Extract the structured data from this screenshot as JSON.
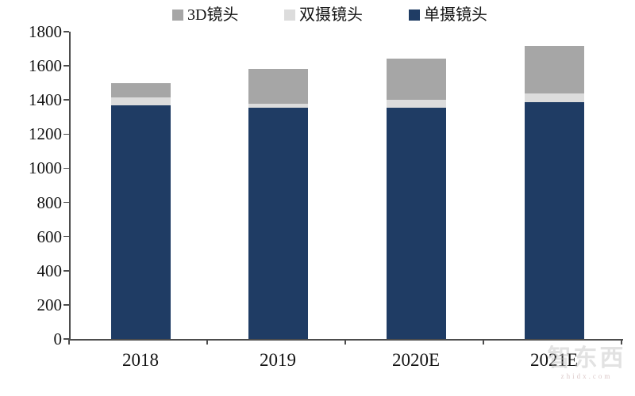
{
  "chart_data": {
    "type": "bar",
    "variant": "stacked-vertical",
    "categories": [
      "2018",
      "2019",
      "2020E",
      "2021E"
    ],
    "series": [
      {
        "name": "单摄镜头",
        "color": "#1f3c64",
        "values": [
          1370,
          1355,
          1355,
          1385
        ]
      },
      {
        "name": "双摄镜头",
        "color": "#dcdcdc",
        "values": [
          45,
          25,
          45,
          55
        ]
      },
      {
        "name": "3D镜头",
        "color": "#a6a6a6",
        "values": [
          85,
          200,
          240,
          275
        ]
      }
    ],
    "totals": [
      1500,
      1580,
      1640,
      1715
    ],
    "title": "",
    "xlabel": "",
    "ylabel": "",
    "ylim": [
      0,
      1800
    ],
    "ytick_step": 200,
    "ytick_labels": [
      "0",
      "200",
      "400",
      "600",
      "800",
      "1000",
      "1200",
      "1400",
      "1600",
      "1800"
    ],
    "grid": false,
    "legend_position": "top"
  },
  "legend": {
    "items": [
      {
        "label": "3D镜头",
        "color": "#a6a6a6"
      },
      {
        "label": "双摄镜头",
        "color": "#dcdcdc"
      },
      {
        "label": "单摄镜头",
        "color": "#1f3c64"
      }
    ]
  },
  "axis": {
    "color": "#4d4d4d"
  },
  "watermark": {
    "text": "智东西",
    "subtext": "zhidx.com"
  }
}
